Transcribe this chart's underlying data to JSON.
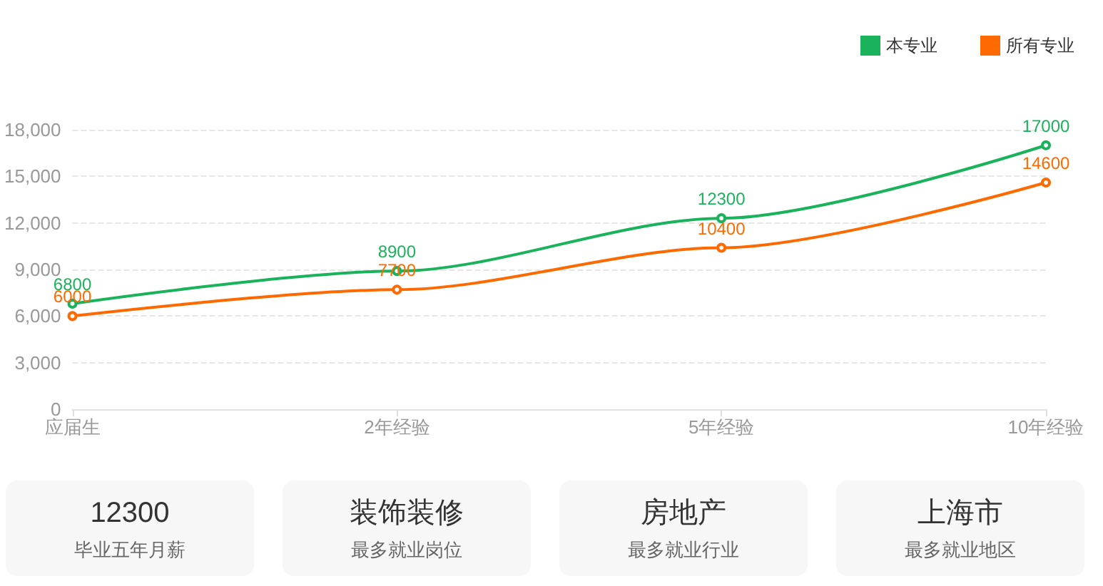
{
  "chart_data": [
    {
      "type": "line",
      "categories": [
        "应届生",
        "2年经验",
        "5年经验",
        "10年经验"
      ],
      "series": [
        {
          "name": "本专业",
          "color": "#1ab35c",
          "values": [
            6800,
            8900,
            12300,
            17000
          ]
        },
        {
          "name": "所有专业",
          "color": "#ff6a00",
          "values": [
            6000,
            7700,
            10400,
            14600
          ]
        }
      ],
      "ylim": [
        0,
        18000
      ],
      "yticks": [
        0,
        {
          "value": 3000,
          "label": "3,000"
        },
        {
          "value": 6000,
          "label": "6,000"
        },
        {
          "value": 9000,
          "label": "9,000"
        },
        {
          "value": 12000,
          "label": "12,000"
        },
        {
          "value": 15000,
          "label": "15,000"
        },
        {
          "value": 18000,
          "label": "18,000"
        }
      ],
      "grid": "y",
      "legend": "top right",
      "marker": "circle",
      "data_labels": true
    },
    {
      "type": "other",
      "title": "12300",
      "subtitle": "毕业五年月薪"
    },
    {
      "type": "other",
      "title": "装饰装修",
      "subtitle": "最多就业岗位"
    },
    {
      "type": "other",
      "title": "房地产",
      "subtitle": "最多就业行业"
    },
    {
      "type": "other",
      "title": "上海市",
      "subtitle": "最多就业地区"
    }
  ]
}
